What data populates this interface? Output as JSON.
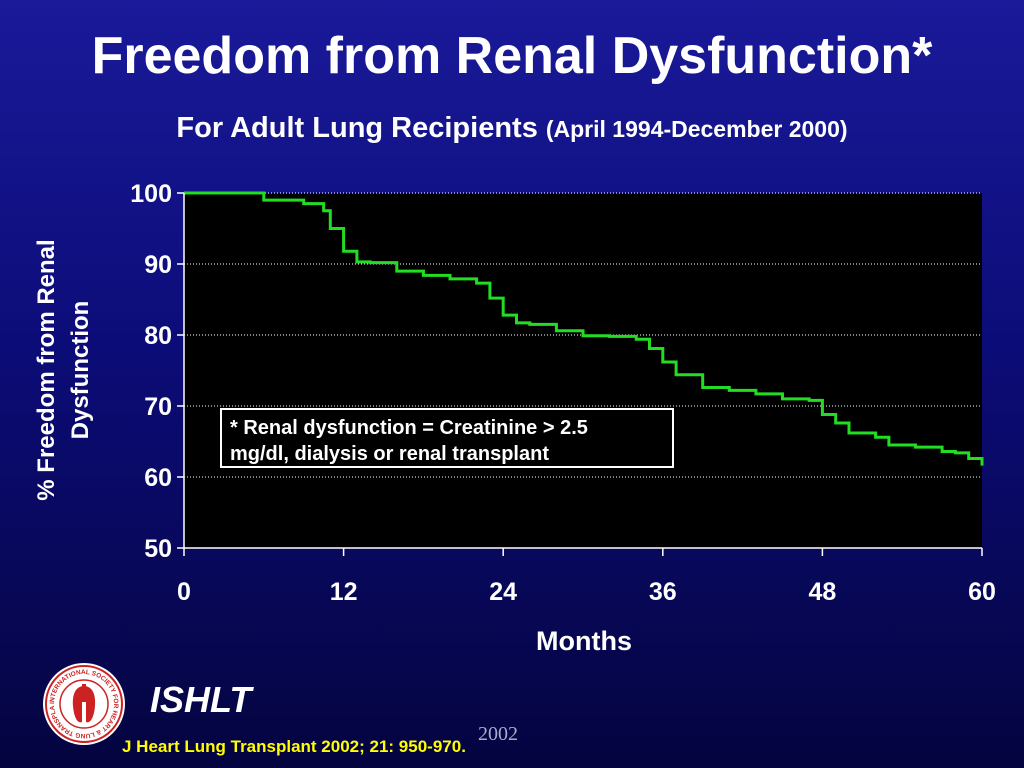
{
  "header": {
    "title": "Freedom from Renal Dysfunction*",
    "subtitle": "For Adult Lung Recipients",
    "date_range": "(April 1994-December 2000)"
  },
  "chart_data": {
    "type": "line",
    "xlabel": "Months",
    "ylabel": "% Freedom from Renal Dysfunction",
    "xlim": [
      0,
      60
    ],
    "ylim": [
      50,
      100
    ],
    "xticks": [
      0,
      12,
      24,
      36,
      48,
      60
    ],
    "yticks": [
      50,
      60,
      70,
      80,
      90,
      100
    ],
    "grid": "horizontal dotted",
    "background": "#000000",
    "series": [
      {
        "color": "#22dd22",
        "step": true,
        "x": [
          0,
          3,
          6,
          9,
          10.5,
          11,
          12,
          13,
          14,
          16,
          18,
          20,
          22,
          23,
          24,
          25,
          26,
          28,
          30,
          32,
          34,
          35,
          36,
          37,
          39,
          41,
          43,
          45,
          47,
          48,
          49,
          50,
          52,
          53,
          55,
          57,
          58,
          59,
          60
        ],
        "y": [
          100,
          100,
          99,
          98.5,
          97.5,
          95,
          91.8,
          90.3,
          90.2,
          89,
          88.4,
          87.9,
          87.3,
          85.2,
          82.8,
          81.7,
          81.5,
          80.6,
          79.9,
          79.8,
          79.4,
          78.1,
          76.2,
          74.4,
          72.6,
          72.2,
          71.7,
          71,
          70.8,
          68.8,
          67.6,
          66.2,
          65.6,
          64.5,
          64.2,
          63.6,
          63.4,
          62.6,
          61.6
        ]
      }
    ]
  },
  "note": {
    "line1": "* Renal dysfunction = Creatinine > 2.5",
    "line2": "mg/dl, dialysis or renal transplant"
  },
  "footer": {
    "org": "ISHLT",
    "year": "2002",
    "citation": "J Heart Lung Transplant 2002; 21: 950-970.",
    "logo_text": "INTERNATIONAL SOCIETY FOR HEART & LUNG TRANSPLANTATION"
  },
  "colors": {
    "background_top": "#1a1a9a",
    "background_bottom": "#040440",
    "curve": "#22dd22",
    "citation": "#ffff00"
  }
}
